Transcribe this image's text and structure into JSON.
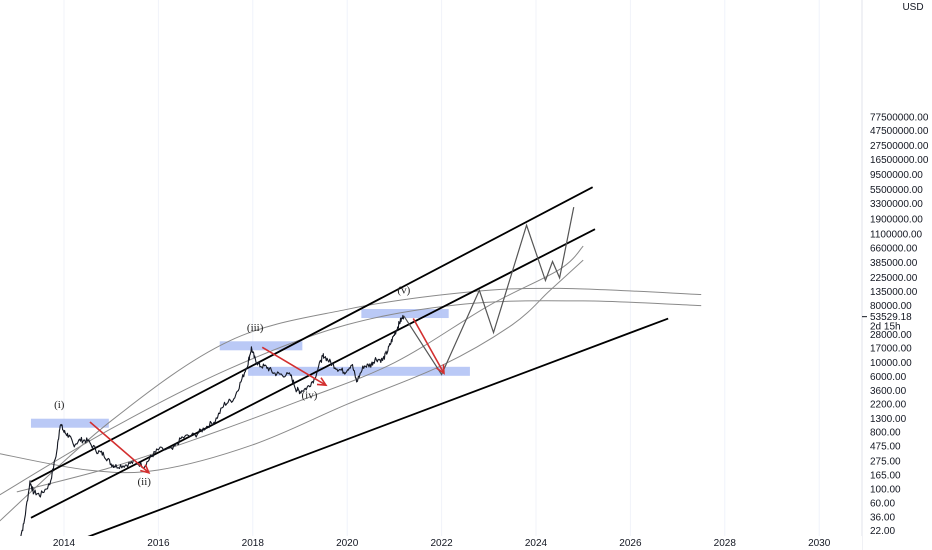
{
  "chart_data": {
    "type": "line",
    "title": "",
    "scale": "log",
    "currency": "USD",
    "x_ticks": [
      "2014",
      "2016",
      "2018",
      "2020",
      "2022",
      "2024",
      "2026",
      "2028",
      "2030"
    ],
    "x_tick_years": [
      2014,
      2016,
      2018,
      2020,
      2022,
      2024,
      2026,
      2028,
      2030
    ],
    "y_ticks": [
      "77500000.00",
      "47500000.00",
      "27500000.00",
      "16500000.00",
      "9500000.00",
      "5500000.00",
      "3300000.00",
      "1900000.00",
      "1100000.00",
      "660000.00",
      "385000.00",
      "225000.00",
      "135000.00",
      "80000.00",
      "28000.00",
      "17000.00",
      "10000.00",
      "6000.00",
      "3600.00",
      "2200.00",
      "1300.00",
      "800.00",
      "475.00",
      "275.00",
      "165.00",
      "100.00",
      "60.00",
      "36.00",
      "22.00"
    ],
    "y_tick_values": [
      77500000,
      47500000,
      27500000,
      16500000,
      9500000,
      5500000,
      3300000,
      1900000,
      1100000,
      660000,
      385000,
      225000,
      135000,
      80000,
      28000,
      17000,
      10000,
      6000,
      3600,
      2200,
      1300,
      800,
      475,
      275,
      165,
      100,
      60,
      36,
      22
    ],
    "last_price": {
      "value": "53529.18",
      "countdown": "2d 15h",
      "numeric": 53529.18
    },
    "price_series": {
      "name": "",
      "points": [
        [
          2013.05,
          15
        ],
        [
          2013.15,
          28
        ],
        [
          2013.28,
          130
        ],
        [
          2013.35,
          90
        ],
        [
          2013.5,
          80
        ],
        [
          2013.7,
          120
        ],
        [
          2013.85,
          400
        ],
        [
          2013.92,
          1100
        ],
        [
          2014.0,
          800
        ],
        [
          2014.1,
          700
        ],
        [
          2014.2,
          500
        ],
        [
          2014.35,
          600
        ],
        [
          2014.5,
          580
        ],
        [
          2014.7,
          400
        ],
        [
          2014.85,
          350
        ],
        [
          2015.0,
          250
        ],
        [
          2015.1,
          230
        ],
        [
          2015.3,
          240
        ],
        [
          2015.5,
          270
        ],
        [
          2015.7,
          230
        ],
        [
          2015.85,
          330
        ],
        [
          2016.0,
          420
        ],
        [
          2016.3,
          420
        ],
        [
          2016.5,
          650
        ],
        [
          2016.8,
          730
        ],
        [
          2017.0,
          950
        ],
        [
          2017.2,
          1200
        ],
        [
          2017.4,
          2200
        ],
        [
          2017.6,
          2700
        ],
        [
          2017.75,
          5000
        ],
        [
          2017.9,
          10000
        ],
        [
          2017.97,
          17000
        ],
        [
          2018.05,
          11000
        ],
        [
          2018.15,
          9000
        ],
        [
          2018.3,
          8500
        ],
        [
          2018.45,
          6800
        ],
        [
          2018.6,
          6500
        ],
        [
          2018.8,
          6300
        ],
        [
          2018.92,
          3800
        ],
        [
          2019.0,
          3500
        ],
        [
          2019.15,
          4000
        ],
        [
          2019.3,
          5500
        ],
        [
          2019.45,
          11000
        ],
        [
          2019.5,
          13000
        ],
        [
          2019.65,
          10000
        ],
        [
          2019.8,
          8000
        ],
        [
          2019.95,
          7200
        ],
        [
          2020.1,
          9500
        ],
        [
          2020.2,
          5000
        ],
        [
          2020.35,
          8800
        ],
        [
          2020.5,
          9200
        ],
        [
          2020.6,
          11500
        ],
        [
          2020.75,
          11000
        ],
        [
          2020.85,
          15000
        ],
        [
          2020.95,
          23000
        ],
        [
          2021.05,
          34000
        ],
        [
          2021.12,
          45000
        ],
        [
          2021.2,
          55000
        ]
      ]
    },
    "projection_path": [
      [
        2021.2,
        55000
      ],
      [
        2022.0,
        6500
      ],
      [
        2022.8,
        140000
      ],
      [
        2023.1,
        30000
      ],
      [
        2023.8,
        1500000
      ],
      [
        2024.2,
        200000
      ],
      [
        2024.35,
        400000
      ],
      [
        2024.5,
        220000
      ],
      [
        2024.8,
        2900000
      ]
    ],
    "channel_lines": [
      {
        "from": [
          2013.3,
          130
        ],
        "to": [
          2025.2,
          6000000
        ]
      },
      {
        "from": [
          2013.3,
          35
        ],
        "to": [
          2025.25,
          1300000
        ]
      },
      {
        "from": [
          2013.3,
          8
        ],
        "to": [
          2026.8,
          50000
        ]
      }
    ],
    "curves": [
      {
        "points": [
          [
            2012.5,
            25
          ],
          [
            2015.0,
            1200
          ],
          [
            2017.5,
            22000
          ],
          [
            2020.0,
            70000
          ],
          [
            2022.5,
            130000
          ],
          [
            2024.5,
            150000
          ],
          [
            2027.5,
            120000
          ]
        ]
      },
      {
        "points": [
          [
            2012.5,
            380
          ],
          [
            2014.5,
            200
          ],
          [
            2016.0,
            200
          ],
          [
            2018.0,
            500
          ],
          [
            2020.0,
            2200
          ],
          [
            2022.0,
            9000
          ],
          [
            2023.5,
            40000
          ],
          [
            2024.3,
            140000
          ],
          [
            2025.0,
            420000
          ]
        ]
      },
      {
        "points": [
          [
            2013.0,
            90
          ],
          [
            2015.0,
            220
          ],
          [
            2017.0,
            700
          ],
          [
            2019.0,
            2500
          ],
          [
            2021.0,
            10000
          ],
          [
            2023.0,
            80000
          ],
          [
            2024.5,
            300000
          ],
          [
            2025.0,
            700000
          ]
        ]
      },
      {
        "points": [
          [
            2012.5,
            70
          ],
          [
            2015.0,
            900
          ],
          [
            2017.5,
            8000
          ],
          [
            2020.0,
            40000
          ],
          [
            2022.5,
            85000
          ],
          [
            2025.0,
            95000
          ],
          [
            2027.5,
            80000
          ]
        ]
      }
    ],
    "zones": [
      {
        "x0": 2013.3,
        "x1": 2014.95,
        "y": 1100
      },
      {
        "x0": 2017.3,
        "x1": 2019.05,
        "y": 18500
      },
      {
        "x0": 2020.3,
        "x1": 2022.15,
        "y": 60000
      },
      {
        "x0": 2017.9,
        "x1": 2022.6,
        "y": 7300
      }
    ],
    "arrows": [
      {
        "from": [
          2014.55,
          1150
        ],
        "to": [
          2015.8,
          180
        ]
      },
      {
        "from": [
          2018.2,
          17500
        ],
        "to": [
          2019.55,
          4400
        ]
      },
      {
        "from": [
          2021.4,
          50000
        ],
        "to": [
          2022.05,
          6800
        ]
      }
    ],
    "wave_labels": [
      {
        "text": "(i)",
        "x": 2013.9,
        "y": 1900
      },
      {
        "text": "(ii)",
        "x": 2015.7,
        "y": 115
      },
      {
        "text": "(iii)",
        "x": 2018.05,
        "y": 32000
      },
      {
        "text": "(iv)",
        "x": 2019.2,
        "y": 2700
      },
      {
        "text": "(v)",
        "x": 2021.2,
        "y": 125000
      }
    ],
    "colors": {
      "background": "#ffffff",
      "price": "#131722",
      "channel": "#000000",
      "curve": "#8a8a8a",
      "arrow": "#d32f2f",
      "zone": "#aebff5",
      "grid": "#f0f3fa"
    }
  }
}
